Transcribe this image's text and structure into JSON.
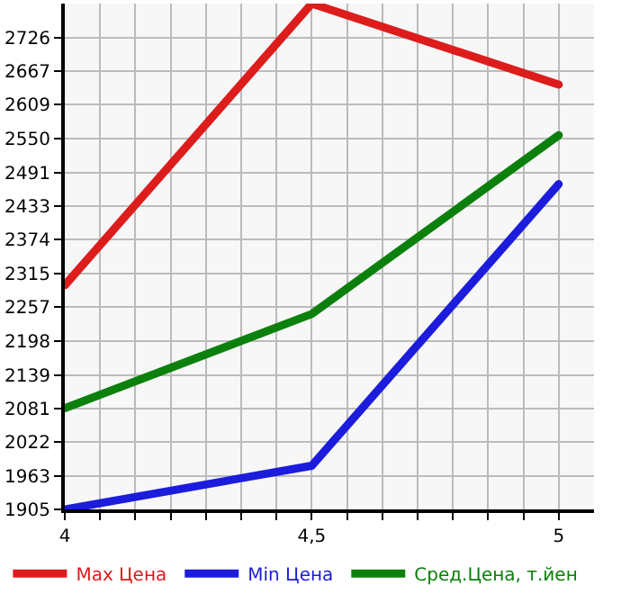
{
  "chart_data": {
    "type": "line",
    "x": [
      4,
      4.5,
      5
    ],
    "series": [
      {
        "name": "Max Цена",
        "color": "#dd1c1c",
        "values": [
          2295,
          2785,
          2644
        ]
      },
      {
        "name": "Min Цена",
        "color": "#1c1cdd",
        "values": [
          1905,
          1981,
          2471
        ]
      },
      {
        "name": "Сред.Цена, т.йен",
        "color": "#0c800c",
        "values": [
          2081,
          2245,
          2556
        ]
      }
    ],
    "xlim": [
      4,
      5.0714
    ],
    "xticks": [
      4,
      {
        "value": 4.0714,
        "label": null
      },
      {
        "value": 4.1429,
        "label": null
      },
      {
        "value": 4.2143,
        "label": null
      },
      {
        "value": 4.2857,
        "label": null
      },
      {
        "value": 4.3571,
        "label": null
      },
      {
        "value": 4.4286,
        "label": null
      },
      {
        "value": 4.5,
        "label": "4,5"
      },
      {
        "value": 4.5714,
        "label": null
      },
      {
        "value": 4.6429,
        "label": null
      },
      {
        "value": 4.7143,
        "label": null
      },
      {
        "value": 4.7857,
        "label": null
      },
      {
        "value": 4.8571,
        "label": null
      },
      {
        "value": 4.9286,
        "label": null
      },
      5
    ],
    "ylim": [
      1905,
      2785
    ],
    "yticks": [
      1905,
      1963,
      2022,
      2081,
      2139,
      2198,
      2257,
      2315,
      2374,
      2433,
      2491,
      2550,
      2609,
      2667,
      2726
    ],
    "grid": true,
    "legend": "bottom",
    "marker": "none",
    "line_style": "solid"
  }
}
